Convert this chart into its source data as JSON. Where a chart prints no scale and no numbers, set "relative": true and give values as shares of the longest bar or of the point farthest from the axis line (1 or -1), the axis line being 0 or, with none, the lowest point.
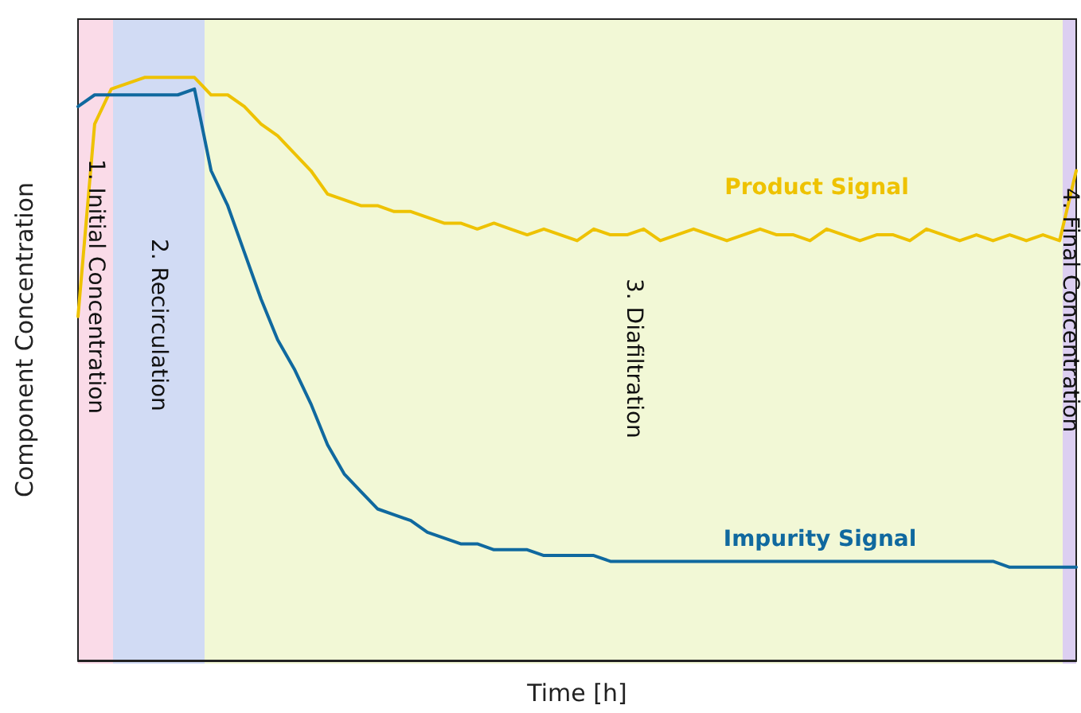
{
  "chart_data": {
    "type": "line",
    "relative": true,
    "xlabel": "Time [h]",
    "ylabel": "Component Concentration",
    "categories": [
      null,
      null,
      null,
      null,
      null,
      null,
      null,
      null,
      null,
      null,
      null,
      null,
      null,
      null,
      null,
      null,
      null,
      null,
      null,
      null,
      null,
      null,
      null,
      null,
      null,
      null,
      null,
      null,
      null,
      null,
      null,
      null,
      null,
      null,
      null,
      null,
      null,
      null,
      null,
      null,
      null,
      null,
      null,
      null,
      null,
      null,
      null,
      null,
      null,
      null,
      null,
      null,
      null,
      null,
      null,
      null,
      null,
      null,
      null,
      null,
      null
    ],
    "series": [
      {
        "name": "Product Signal",
        "color": "#eec200",
        "values": [
          0.59,
          0.92,
          0.98,
          0.99,
          1.0,
          1.0,
          1.0,
          1.0,
          0.97,
          0.97,
          0.95,
          0.92,
          0.9,
          0.87,
          0.84,
          0.8,
          0.79,
          0.78,
          0.78,
          0.77,
          0.77,
          0.76,
          0.75,
          0.75,
          0.74,
          0.75,
          0.74,
          0.73,
          0.74,
          0.73,
          0.72,
          0.74,
          0.73,
          0.73,
          0.74,
          0.72,
          0.73,
          0.74,
          0.73,
          0.72,
          0.73,
          0.74,
          0.73,
          0.73,
          0.72,
          0.74,
          0.73,
          0.72,
          0.73,
          0.73,
          0.72,
          0.74,
          0.73,
          0.72,
          0.73,
          0.72,
          0.73,
          0.72,
          0.73,
          0.72,
          0.84
        ]
      },
      {
        "name": "Impurity Signal",
        "color": "#10699f",
        "values": [
          0.95,
          0.97,
          0.97,
          0.97,
          0.97,
          0.97,
          0.97,
          0.98,
          0.84,
          0.78,
          0.7,
          0.62,
          0.55,
          0.5,
          0.44,
          0.37,
          0.32,
          0.29,
          0.26,
          0.25,
          0.24,
          0.22,
          0.21,
          0.2,
          0.2,
          0.19,
          0.19,
          0.19,
          0.18,
          0.18,
          0.18,
          0.18,
          0.17,
          0.17,
          0.17,
          0.17,
          0.17,
          0.17,
          0.17,
          0.17,
          0.17,
          0.17,
          0.17,
          0.17,
          0.17,
          0.17,
          0.17,
          0.17,
          0.17,
          0.17,
          0.17,
          0.17,
          0.17,
          0.17,
          0.17,
          0.17,
          0.16,
          0.16,
          0.16,
          0.16,
          0.16
        ]
      }
    ],
    "annotations": [
      "1. Initial Concentration",
      "2. Recirculation",
      "3. Diafiltration",
      "4. Final Concentration"
    ],
    "grid": false,
    "legend": false,
    "marker": "none",
    "line_style": "solid"
  }
}
